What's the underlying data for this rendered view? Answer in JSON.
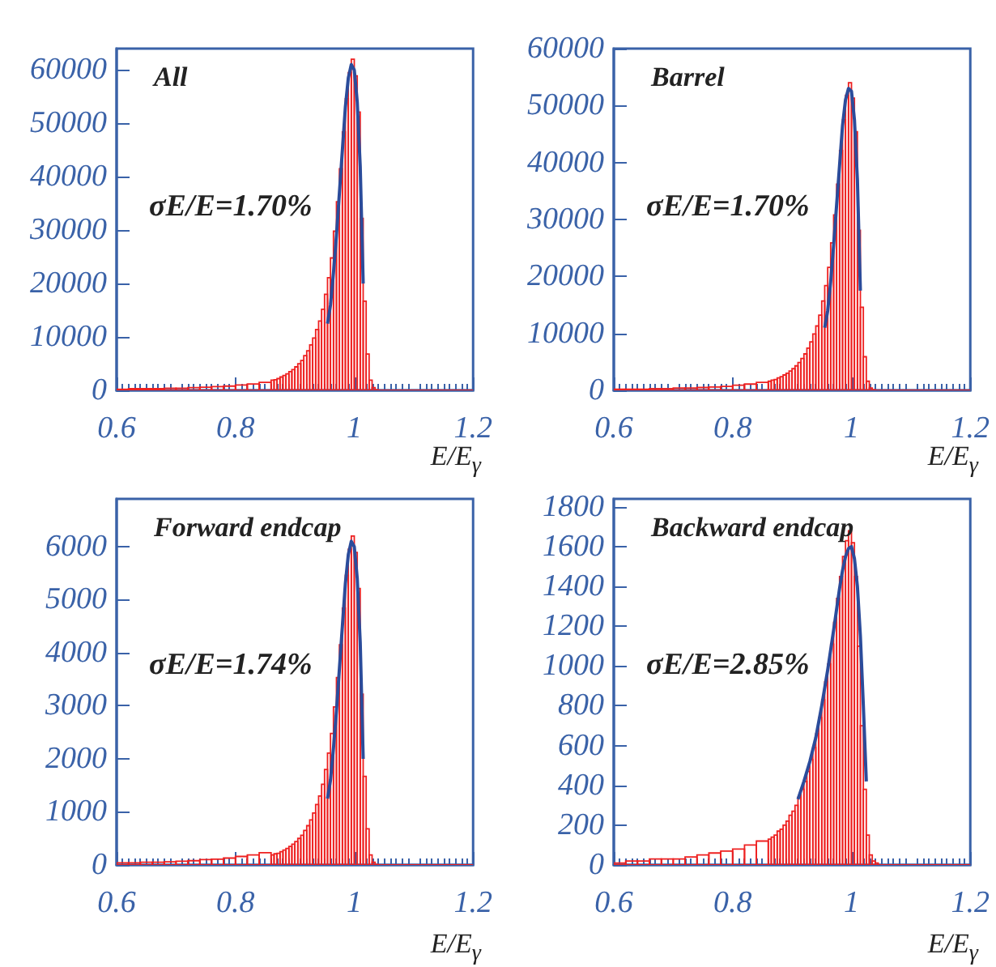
{
  "chart_data": [
    {
      "type": "histogram",
      "title": "All",
      "annotations": [
        "σE/E=1.70%"
      ],
      "xlabel": "E/E$_{γ}$",
      "xlim": [
        0.6,
        1.2
      ],
      "xticks": [
        0.6,
        0.8,
        1,
        1.2
      ],
      "ylim": [
        0,
        64000
      ],
      "yticks": [
        0,
        10000,
        20000,
        30000,
        40000,
        50000,
        60000
      ],
      "grid": false,
      "bins": [
        0.6,
        0.62,
        0.64,
        0.66,
        0.68,
        0.7,
        0.72,
        0.74,
        0.76,
        0.78,
        0.8,
        0.82,
        0.84,
        0.86,
        0.865,
        0.87,
        0.875,
        0.88,
        0.885,
        0.89,
        0.895,
        0.9,
        0.905,
        0.91,
        0.915,
        0.92,
        0.925,
        0.93,
        0.935,
        0.94,
        0.945,
        0.95,
        0.955,
        0.96,
        0.965,
        0.97,
        0.975,
        0.98,
        0.985,
        0.99,
        0.995,
        1,
        1.005,
        1.01,
        1.015,
        1.02,
        1.025,
        1.03,
        1.035,
        1.04,
        1.045,
        1.05,
        1.055,
        1.06,
        1.13,
        1.2
      ],
      "series": [
        {
          "type": "histogram",
          "color": "#ee2020",
          "values": [
            200,
            300,
            300,
            300,
            400,
            400,
            500,
            600,
            700,
            800,
            1000,
            1200,
            1500,
            1900,
            2000,
            2200,
            2500,
            2800,
            3100,
            3500,
            3900,
            4400,
            5000,
            5600,
            6500,
            7400,
            8500,
            9800,
            11400,
            13000,
            15200,
            18000,
            21100,
            24800,
            29800,
            35300,
            41500,
            48400,
            54600,
            59500,
            62000,
            58900,
            52100,
            32200,
            16700,
            6800,
            1900,
            500,
            100,
            0,
            0,
            0,
            0,
            0,
            0
          ]
        },
        {
          "type": "line",
          "color": "#2b4c9b",
          "x": [
            0.955,
            0.96,
            0.965,
            0.97,
            0.975,
            0.98,
            0.985,
            0.99,
            0.995,
            1,
            1.005,
            1.01,
            1.015
          ],
          "values": [
            12500,
            16000,
            22000,
            29000,
            37000,
            45000,
            53000,
            58500,
            61000,
            60000,
            54000,
            42000,
            20000
          ]
        }
      ]
    },
    {
      "type": "histogram",
      "title": "Barrel",
      "annotations": [
        "σE/E=1.70%"
      ],
      "xlabel": "E/E$_{γ}$",
      "xlim": [
        0.6,
        1.2
      ],
      "xticks": [
        0.6,
        0.8,
        1,
        1.2
      ],
      "ylim": [
        0,
        60000
      ],
      "yticks": [
        0,
        10000,
        20000,
        30000,
        40000,
        50000,
        60000
      ],
      "grid": false,
      "bins": [
        0.6,
        0.62,
        0.64,
        0.66,
        0.68,
        0.7,
        0.72,
        0.74,
        0.76,
        0.78,
        0.8,
        0.82,
        0.84,
        0.86,
        0.865,
        0.87,
        0.875,
        0.88,
        0.885,
        0.89,
        0.895,
        0.9,
        0.905,
        0.91,
        0.915,
        0.92,
        0.925,
        0.93,
        0.935,
        0.94,
        0.945,
        0.95,
        0.955,
        0.96,
        0.965,
        0.97,
        0.975,
        0.98,
        0.985,
        0.99,
        0.995,
        1,
        1.005,
        1.01,
        1.015,
        1.02,
        1.025,
        1.03,
        1.035,
        1.04,
        1.045,
        1.05,
        1.055,
        1.06,
        1.13,
        1.2
      ],
      "series": [
        {
          "type": "histogram",
          "color": "#ee2020",
          "values": [
            200,
            200,
            200,
            300,
            300,
            400,
            400,
            500,
            600,
            700,
            900,
            1100,
            1400,
            1600,
            1800,
            1900,
            2200,
            2400,
            2700,
            3000,
            3400,
            3800,
            4300,
            4900,
            5600,
            6400,
            7400,
            8500,
            9900,
            11300,
            13200,
            15700,
            18400,
            21600,
            25900,
            30800,
            36200,
            42100,
            47500,
            51800,
            54000,
            51300,
            45400,
            28100,
            14600,
            5900,
            1600,
            400,
            100,
            0,
            0,
            0,
            0,
            0,
            0
          ]
        },
        {
          "type": "line",
          "color": "#2b4c9b",
          "x": [
            0.955,
            0.96,
            0.965,
            0.97,
            0.975,
            0.98,
            0.985,
            0.99,
            0.995,
            1,
            1.005,
            1.01,
            1.015
          ],
          "values": [
            11000,
            14000,
            19000,
            25500,
            32500,
            39500,
            46500,
            51000,
            53000,
            52500,
            47500,
            37000,
            17500
          ]
        }
      ]
    },
    {
      "type": "histogram",
      "title": "Forward endcap",
      "annotations": [
        "σE/E=1.74%"
      ],
      "xlabel": "E/E$_{γ}$",
      "xlim": [
        0.6,
        1.2
      ],
      "xticks": [
        0.6,
        0.8,
        1,
        1.2
      ],
      "ylim": [
        0,
        6900
      ],
      "yticks": [
        0,
        1000,
        2000,
        3000,
        4000,
        5000,
        6000
      ],
      "grid": false,
      "bins": [
        0.6,
        0.62,
        0.64,
        0.66,
        0.68,
        0.7,
        0.72,
        0.74,
        0.76,
        0.78,
        0.8,
        0.82,
        0.84,
        0.86,
        0.865,
        0.87,
        0.875,
        0.88,
        0.885,
        0.89,
        0.895,
        0.9,
        0.905,
        0.91,
        0.915,
        0.92,
        0.925,
        0.93,
        0.935,
        0.94,
        0.945,
        0.95,
        0.955,
        0.96,
        0.965,
        0.97,
        0.975,
        0.98,
        0.985,
        0.99,
        0.995,
        1,
        1.005,
        1.01,
        1.015,
        1.02,
        1.025,
        1.03,
        1.035,
        1.04,
        1.045,
        1.05,
        1.055,
        1.06,
        1.13,
        1.2
      ],
      "series": [
        {
          "type": "histogram",
          "color": "#ee2020",
          "values": [
            40,
            40,
            50,
            50,
            60,
            70,
            80,
            100,
            110,
            130,
            160,
            190,
            230,
            190,
            210,
            220,
            250,
            280,
            310,
            350,
            390,
            440,
            500,
            560,
            650,
            740,
            850,
            980,
            1140,
            1300,
            1520,
            1800,
            2110,
            2480,
            2980,
            3530,
            4150,
            4840,
            5460,
            5950,
            6200,
            5890,
            5210,
            3220,
            1670,
            680,
            190,
            50,
            10,
            0,
            0,
            0,
            0,
            0,
            0
          ]
        },
        {
          "type": "line",
          "color": "#2b4c9b",
          "x": [
            0.955,
            0.96,
            0.965,
            0.97,
            0.975,
            0.98,
            0.985,
            0.99,
            0.995,
            1,
            1.005,
            1.01,
            1.015
          ],
          "values": [
            1250,
            1600,
            2200,
            2900,
            3700,
            4500,
            5300,
            5850,
            6100,
            6000,
            5400,
            4200,
            2000
          ]
        }
      ]
    },
    {
      "type": "histogram",
      "title": "Backward endcap",
      "annotations": [
        "σE/E=2.85%"
      ],
      "xlabel": "E/E$_{γ}$",
      "xlim": [
        0.6,
        1.2
      ],
      "xticks": [
        0.6,
        0.8,
        1,
        1.2
      ],
      "ylim": [
        0,
        1840
      ],
      "yticks": [
        0,
        200,
        400,
        600,
        800,
        1000,
        1200,
        1400,
        1600,
        1800
      ],
      "grid": false,
      "bins": [
        0.6,
        0.62,
        0.64,
        0.66,
        0.68,
        0.7,
        0.72,
        0.74,
        0.76,
        0.78,
        0.8,
        0.82,
        0.84,
        0.86,
        0.865,
        0.87,
        0.875,
        0.88,
        0.885,
        0.89,
        0.895,
        0.9,
        0.905,
        0.91,
        0.915,
        0.92,
        0.925,
        0.93,
        0.935,
        0.94,
        0.945,
        0.95,
        0.955,
        0.96,
        0.965,
        0.97,
        0.975,
        0.98,
        0.985,
        0.99,
        0.995,
        1,
        1.005,
        1.01,
        1.015,
        1.02,
        1.025,
        1.03,
        1.035,
        1.04,
        1.045,
        1.05,
        1.055,
        1.06,
        1.13,
        1.2
      ],
      "series": [
        {
          "type": "histogram",
          "color": "#ee2020",
          "values": [
            10,
            20,
            20,
            30,
            30,
            30,
            40,
            50,
            60,
            70,
            80,
            100,
            120,
            130,
            140,
            150,
            170,
            180,
            200,
            220,
            250,
            270,
            300,
            340,
            380,
            420,
            470,
            530,
            590,
            660,
            740,
            830,
            920,
            1010,
            1110,
            1220,
            1340,
            1450,
            1550,
            1630,
            1680,
            1620,
            1450,
            1100,
            700,
            380,
            150,
            50,
            20,
            10,
            0,
            0,
            0,
            0,
            0
          ]
        },
        {
          "type": "line",
          "color": "#2b4c9b",
          "x": [
            0.91,
            0.92,
            0.93,
            0.94,
            0.95,
            0.96,
            0.97,
            0.98,
            0.985,
            0.99,
            0.995,
            1,
            1.005,
            1.01,
            1.015,
            1.02,
            1.025
          ],
          "values": [
            330,
            420,
            520,
            640,
            800,
            980,
            1180,
            1390,
            1480,
            1550,
            1590,
            1600,
            1540,
            1400,
            1150,
            800,
            420
          ]
        }
      ]
    }
  ]
}
